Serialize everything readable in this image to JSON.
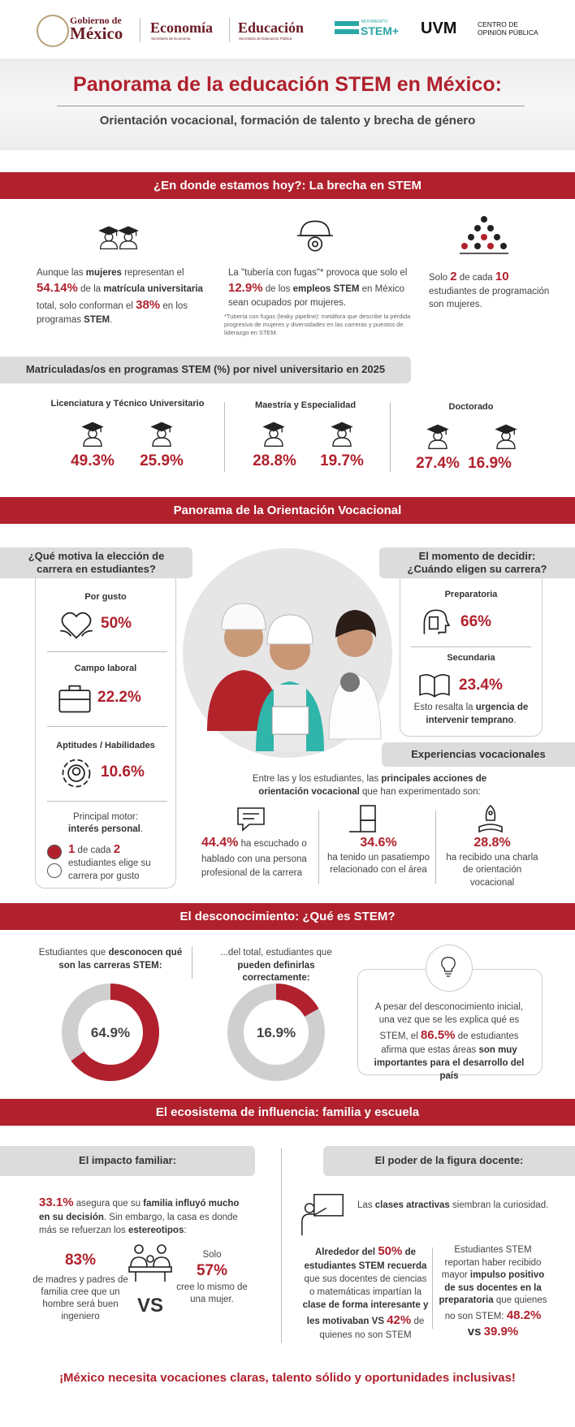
{
  "header": {
    "logos": [
      "Gobierno de",
      "México",
      "Economía",
      "Secretaría de Economía",
      "Educación",
      "Secretaría de Educación Pública",
      "MOVIMIENTO",
      "STEM+",
      "UVM",
      "CENTRO DE",
      "OPINIÓN PÚBLICA"
    ]
  },
  "banner": {
    "title": "Panorama de la educación STEM en México:",
    "subtitle": "Orientación vocacional, formación de talento y brecha de género"
  },
  "gap": {
    "heading": "¿En donde estamos hoy?: La brecha en STEM",
    "items": [
      [
        "Aunque las",
        "mujeres",
        "representan el",
        "54.14%",
        "de la",
        "matrícula universitaria",
        "total, solo conforman el",
        "38%",
        "en los programas",
        "STEM",
        "."
      ],
      [
        "La \"tubería con fugas\"* provoca que solo el",
        "12.9%",
        "de los",
        "empleos STEM",
        "en México sean ocupados por mujeres."
      ],
      [
        "Solo",
        "2",
        "de cada",
        "10",
        "estudiantes de programación son mujeres."
      ]
    ],
    "footnote": "*Tubería con fugas (leaky pipeline): metáfora que describe la pérdida progresiva de mujeres y diversidades en las carreras y puestos de liderazgo en STEM."
  },
  "enrollment": {
    "heading": "Matriculadas/os en programas STEM (%) por nivel universitario en 2025",
    "levels": [
      {
        "name": "Licenciatura y Técnico Universitario",
        "values": [
          "49.3%",
          "25.9%"
        ]
      },
      {
        "name": "Maestría y Especialidad",
        "values": [
          "28.8%",
          "19.7%"
        ]
      },
      {
        "name": "Doctorado",
        "values": [
          "27.4%",
          "16.9%"
        ]
      }
    ]
  },
  "vocational": {
    "heading": "Panorama de la Orientación Vocacional",
    "motives": {
      "title": "¿Qué motiva la elección de carrera en estudiantes?",
      "items": [
        {
          "label": "Por gusto",
          "value": "50%"
        },
        {
          "label": "Campo laboral",
          "value": "22.2%"
        },
        {
          "label": "Aptitudes / Habilidades",
          "value": "10.6%"
        }
      ],
      "note": [
        "Principal motor:",
        "interés personal",
        "."
      ],
      "ratio": [
        "1",
        "de cada",
        "2",
        "estudiantes elige su carrera por gusto"
      ]
    },
    "decision": {
      "title": "El momento de decidir: ¿Cuándo eligen su carrera?",
      "items": [
        {
          "label": "Preparatoria",
          "value": "66%"
        },
        {
          "label": "Secundaria",
          "value": "23.4%"
        }
      ],
      "note": [
        "Esto resalta la",
        "urgencia de intervenir temprano",
        "."
      ]
    },
    "experiences": {
      "title": "Experiencias vocacionales",
      "intro": [
        "Entre las y los estudiantes, las",
        "principales acciones de orientación vocacional",
        "que han experimentado son:"
      ],
      "items": [
        {
          "value": "44.4%",
          "text": "ha escuchado o hablado con una persona profesional de la carrera"
        },
        {
          "value": "34.6%",
          "text": "ha tenido un pasatiempo relacionado con el área"
        },
        {
          "value": "28.8%",
          "text": "ha recibido una charla de orientación vocacional"
        }
      ]
    }
  },
  "knowledge": {
    "heading": "El desconocimiento: ¿Qué es STEM?",
    "donuts": [
      {
        "caption": [
          "Estudiantes que",
          "desconocen qué son las carreras STEM:"
        ],
        "value": 64.9,
        "value_label": "64.9%"
      },
      {
        "caption": [
          "...del total, estudiantes que",
          "pueden definirlas correctamente:"
        ],
        "value": 16.9,
        "value_label": "16.9%"
      }
    ],
    "box": [
      "A pesar del desconocimiento inicial, una vez que se les explica qué es STEM, el",
      "86.5%",
      "de estudiantes afirma que estas áreas",
      "son muy importantes para el desarrollo del país"
    ]
  },
  "influence": {
    "heading": "El ecosistema de influencia: familia y escuela",
    "family": {
      "title": "El impacto familiar:",
      "text": [
        "33.1%",
        "asegura que su",
        "familia influyó mucho en su decisión",
        ". Sin embargo, la casa es donde más se refuerzan los",
        "estereotipos",
        ":"
      ],
      "men": {
        "value": "83%",
        "text": "de madres y padres de familia cree que un hombre será buen ingeniero"
      },
      "vs": "VS",
      "women": {
        "prefix": "Solo",
        "value": "57%",
        "text": "cree lo mismo de una mujer."
      }
    },
    "teachers": {
      "title": "El poder de la figura docente:",
      "lead": [
        "Las",
        "clases atractivas",
        "siembran la curiosidad."
      ],
      "recall": [
        "Alrededor del",
        "50%",
        "de estudiantes STEM recuerda",
        "que sus docentes de ciencias o matemáticas impartían la",
        "clase de forma interesante y les motivaban",
        "VS",
        "42%",
        "de quienes no son STEM"
      ],
      "boost": [
        "Estudiantes STEM reportan haber recibido mayor",
        "impulso positivo de sus docentes en la preparatoria",
        "que quienes no son STEM:",
        "48.2%",
        "vs",
        "39.9%"
      ]
    }
  },
  "footer": "¡México necesita vocaciones claras, talento sólido y oportunidades inclusivas!"
}
